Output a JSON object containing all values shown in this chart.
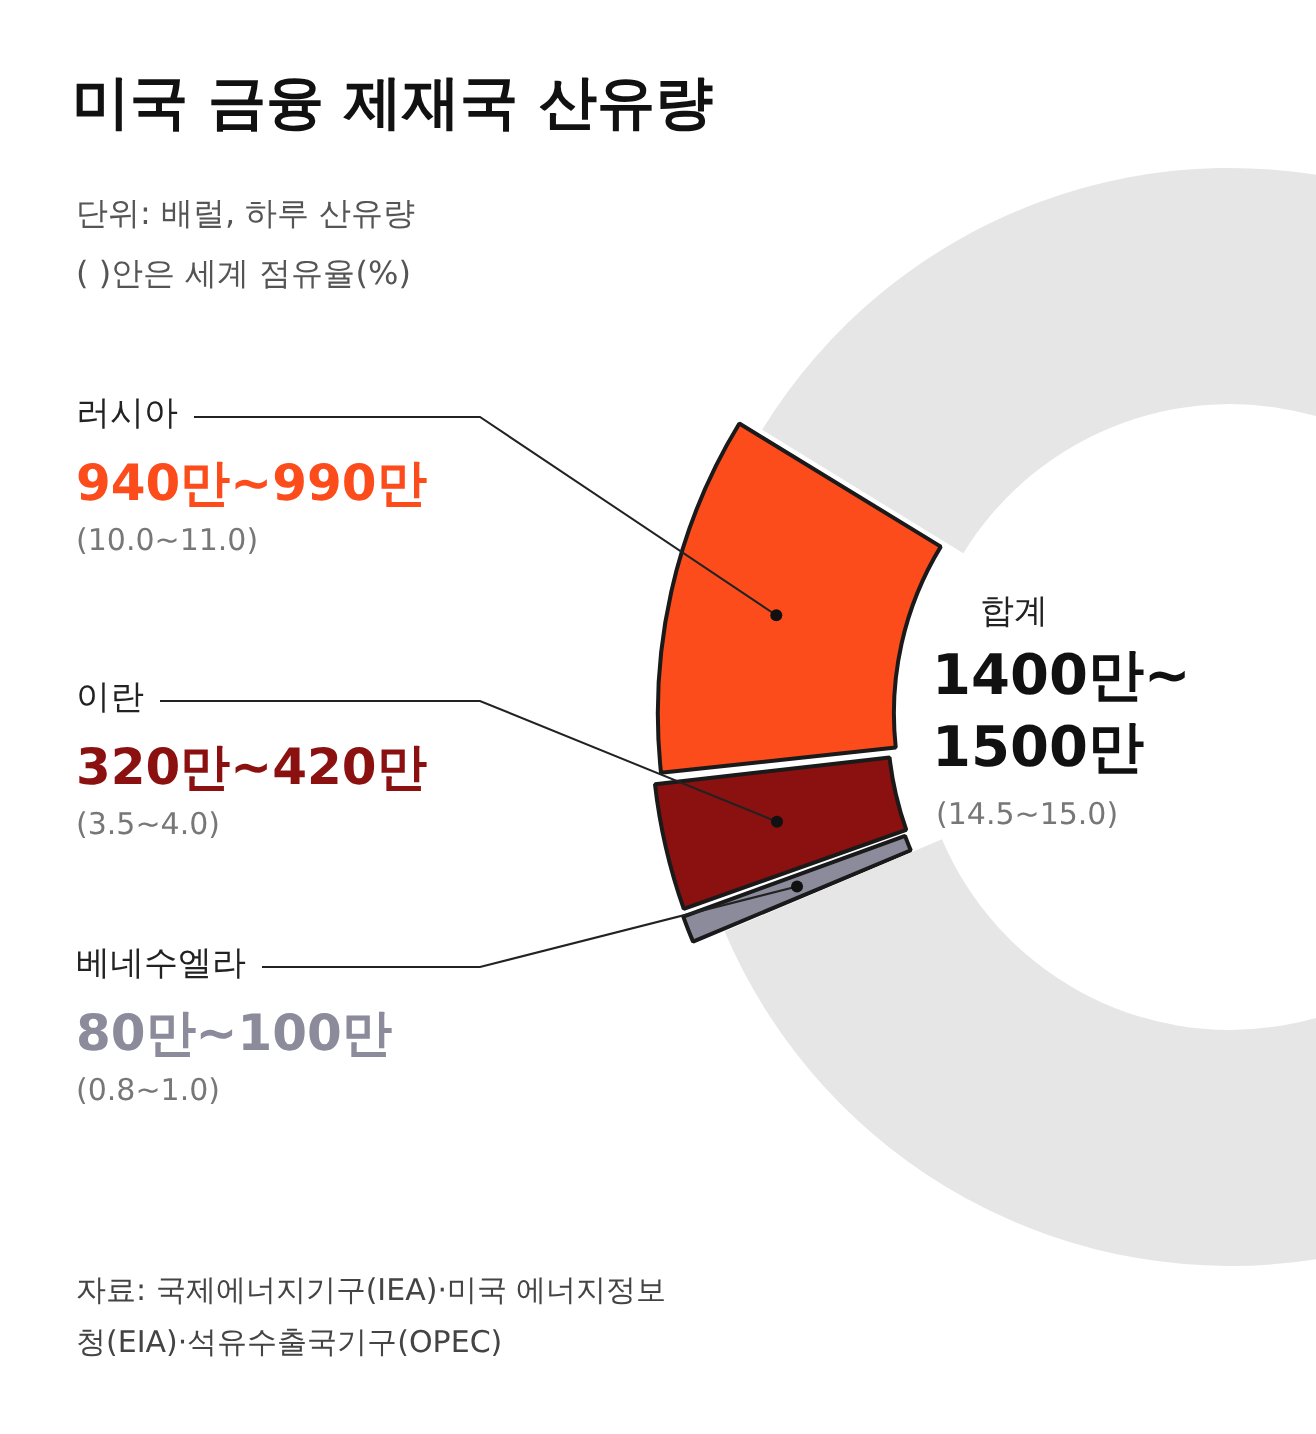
{
  "chart_data": {
    "type": "donut",
    "title": "미국 금융 제재국 산유량",
    "subtitle": "단위: 배럴, 하루 산유량\n( )안은 세계 점유율(%)",
    "categories": [
      "베네수엘라",
      "이란",
      "러시아",
      null
    ],
    "values": [
      0.9,
      3.75,
      10.5,
      84.85
    ],
    "colors": [
      "#8b8b9b",
      "#8b1010",
      "#fc4c1c",
      "#e6e6e6"
    ],
    "annotations": [
      "80만~100만",
      "(0.8~1.0)",
      "320만~420만",
      "(3.5~4.0)",
      "940만~990만",
      "(10.0~11.0)",
      "합계",
      "1400만~1500만",
      "(14.5~15.0)",
      "자료: 국제에너지기구(IEA)·미국 에너지정보청(EIA)·석유수출국기구(OPEC)"
    ],
    "legend": false
  }
}
